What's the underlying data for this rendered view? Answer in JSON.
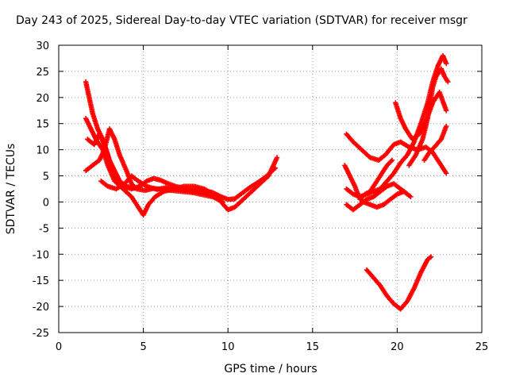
{
  "chart_data": {
    "type": "scatter",
    "title": "Day 243 of 2025, Sidereal Day-to-day VTEC variation (SDTVAR) for receiver msgr",
    "xlabel": "GPS time / hours",
    "ylabel": "SDTVAR / TECUs",
    "xlim": [
      0,
      25
    ],
    "ylim": [
      -25,
      30
    ],
    "xticks": [
      "0",
      "5",
      "10",
      "15",
      "20",
      "25"
    ],
    "yticks": [
      "-25",
      "-20",
      "-15",
      "-10",
      "-5",
      "0",
      "5",
      "10",
      "15",
      "20",
      "25",
      "30"
    ],
    "grid": true,
    "marker": "plus",
    "color": "#ff0000",
    "series": [
      {
        "points": [
          [
            1.6,
            23
          ],
          [
            1.8,
            20
          ],
          [
            2.0,
            17
          ],
          [
            2.3,
            14
          ],
          [
            2.6,
            12
          ],
          [
            2.9,
            9
          ],
          [
            3.1,
            6
          ],
          [
            3.4,
            4
          ],
          [
            3.8,
            3
          ],
          [
            4.3,
            2.5
          ],
          [
            4.8,
            3
          ],
          [
            5.2,
            4
          ],
          [
            5.6,
            4.5
          ],
          [
            6.0,
            4.2
          ],
          [
            6.4,
            3.6
          ],
          [
            6.9,
            3
          ],
          [
            7.4,
            2.6
          ],
          [
            8.0,
            2.5
          ],
          [
            8.6,
            2.2
          ],
          [
            9.1,
            1.8
          ],
          [
            9.6,
            1
          ],
          [
            10.0,
            0.5
          ],
          [
            10.4,
            0.6
          ],
          [
            10.8,
            1.6
          ],
          [
            11.3,
            2.8
          ],
          [
            11.8,
            3.8
          ],
          [
            12.3,
            5
          ],
          [
            12.8,
            6.5
          ]
        ]
      },
      {
        "points": [
          [
            1.6,
            16
          ],
          [
            1.9,
            14
          ],
          [
            2.2,
            12
          ],
          [
            2.6,
            10
          ],
          [
            2.9,
            7
          ],
          [
            3.3,
            4
          ],
          [
            3.8,
            2.5
          ],
          [
            4.3,
            1
          ],
          [
            4.7,
            -1
          ],
          [
            5.0,
            -2.5
          ],
          [
            5.3,
            -0.5
          ],
          [
            5.7,
            1
          ],
          [
            6.2,
            2
          ],
          [
            6.8,
            2.5
          ],
          [
            7.4,
            3
          ],
          [
            8.0,
            3
          ],
          [
            8.6,
            2.5
          ],
          [
            9.1,
            1.5
          ],
          [
            9.6,
            0
          ],
          [
            10.0,
            -1.5
          ],
          [
            10.4,
            -1
          ],
          [
            10.9,
            0.5
          ],
          [
            11.4,
            2
          ],
          [
            11.9,
            3.5
          ],
          [
            12.4,
            5
          ],
          [
            12.9,
            8.5
          ]
        ]
      },
      {
        "points": [
          [
            1.6,
            6
          ],
          [
            2.0,
            7
          ],
          [
            2.4,
            8
          ],
          [
            2.7,
            10
          ],
          [
            3.0,
            14
          ],
          [
            3.3,
            12
          ],
          [
            3.6,
            9
          ],
          [
            4.0,
            6
          ],
          [
            4.3,
            3.5
          ],
          [
            4.6,
            2.5
          ],
          [
            5.1,
            2.2
          ],
          [
            5.6,
            2.6
          ],
          [
            6.1,
            2.4
          ],
          [
            6.7,
            2.2
          ],
          [
            7.3,
            2
          ],
          [
            7.9,
            1.8
          ],
          [
            8.5,
            1.4
          ],
          [
            9.1,
            1
          ],
          [
            9.7,
            0
          ]
        ]
      },
      {
        "points": [
          [
            2.5,
            4
          ],
          [
            2.9,
            3
          ],
          [
            3.4,
            2.5
          ],
          [
            3.9,
            3.5
          ],
          [
            4.3,
            5
          ],
          [
            4.7,
            4
          ],
          [
            5.2,
            3
          ],
          [
            5.8,
            2.4
          ],
          [
            6.4,
            2.8
          ],
          [
            7.0,
            2.6
          ],
          [
            7.6,
            2.2
          ],
          [
            8.2,
            2
          ],
          [
            8.8,
            1.5
          ],
          [
            9.4,
            0.8
          ]
        ]
      },
      {
        "points": [
          [
            1.7,
            12
          ],
          [
            2.1,
            11
          ],
          [
            2.4,
            13
          ],
          [
            2.7,
            11
          ],
          [
            3.0,
            8
          ],
          [
            3.3,
            6
          ],
          [
            3.6,
            4
          ],
          [
            4.0,
            3
          ],
          [
            4.5,
            2.6
          ]
        ]
      },
      {
        "points": [
          [
            17.0,
            13
          ],
          [
            17.4,
            11.5
          ],
          [
            17.9,
            10
          ],
          [
            18.4,
            8.5
          ],
          [
            18.9,
            8
          ],
          [
            19.3,
            9
          ],
          [
            19.8,
            11
          ],
          [
            20.2,
            11.5
          ],
          [
            20.7,
            10.5
          ],
          [
            21.2,
            10
          ],
          [
            21.7,
            10.5
          ],
          [
            22.1,
            9.5
          ],
          [
            22.5,
            7.5
          ],
          [
            22.9,
            5.5
          ]
        ]
      },
      {
        "points": [
          [
            17.0,
            2.5
          ],
          [
            17.4,
            1.5
          ],
          [
            17.8,
            1
          ],
          [
            18.2,
            1.5
          ],
          [
            18.6,
            2
          ],
          [
            19.0,
            2.5
          ],
          [
            19.4,
            4
          ],
          [
            19.8,
            5.5
          ],
          [
            20.2,
            7.5
          ],
          [
            20.6,
            9
          ],
          [
            21.0,
            11.5
          ],
          [
            21.4,
            15
          ],
          [
            21.8,
            19
          ],
          [
            22.1,
            23
          ],
          [
            22.4,
            26
          ],
          [
            22.7,
            28
          ],
          [
            22.9,
            26.5
          ]
        ]
      },
      {
        "points": [
          [
            16.9,
            7
          ],
          [
            17.2,
            5
          ],
          [
            17.5,
            3
          ],
          [
            17.8,
            0.5
          ],
          [
            18.1,
            1.5
          ],
          [
            18.4,
            2
          ],
          [
            18.8,
            4
          ],
          [
            19.1,
            5.5
          ],
          [
            19.4,
            7
          ],
          [
            19.7,
            8
          ]
        ]
      },
      {
        "points": [
          [
            17.0,
            -0.5
          ],
          [
            17.4,
            -1.5
          ],
          [
            17.8,
            -0.5
          ],
          [
            18.2,
            0.5
          ],
          [
            18.6,
            1
          ],
          [
            19.0,
            2
          ],
          [
            19.4,
            3
          ],
          [
            19.8,
            3.5
          ],
          [
            20.2,
            2.5
          ],
          [
            20.6,
            1.5
          ]
        ]
      },
      {
        "points": [
          [
            17.6,
            1.5
          ],
          [
            18.0,
            0
          ],
          [
            18.4,
            -0.5
          ],
          [
            18.8,
            -1
          ],
          [
            19.2,
            -0.5
          ],
          [
            19.6,
            0.5
          ],
          [
            20.0,
            1.5
          ],
          [
            20.4,
            2
          ],
          [
            20.8,
            1
          ]
        ]
      },
      {
        "points": [
          [
            19.9,
            19
          ],
          [
            20.2,
            16
          ],
          [
            20.5,
            14
          ],
          [
            20.9,
            12
          ],
          [
            21.3,
            13
          ],
          [
            21.7,
            15.5
          ],
          [
            22.1,
            19
          ],
          [
            22.5,
            21
          ],
          [
            22.9,
            17.5
          ]
        ]
      },
      {
        "points": [
          [
            20.7,
            7
          ],
          [
            21.1,
            9
          ],
          [
            21.5,
            12
          ],
          [
            21.8,
            16
          ],
          [
            22.1,
            22
          ],
          [
            22.3,
            24
          ],
          [
            22.6,
            25.5
          ],
          [
            22.8,
            24
          ],
          [
            23.0,
            23
          ]
        ]
      },
      {
        "points": [
          [
            21.6,
            8
          ],
          [
            21.9,
            9.5
          ],
          [
            22.2,
            10.5
          ],
          [
            22.6,
            12
          ],
          [
            22.9,
            14.5
          ]
        ]
      },
      {
        "points": [
          [
            18.2,
            -13
          ],
          [
            18.6,
            -14.5
          ],
          [
            19.0,
            -16
          ],
          [
            19.4,
            -18
          ],
          [
            19.8,
            -19.5
          ],
          [
            20.2,
            -20.5
          ],
          [
            20.6,
            -19
          ],
          [
            21.0,
            -16.5
          ],
          [
            21.4,
            -13.5
          ],
          [
            21.8,
            -11
          ],
          [
            22.0,
            -10.5
          ]
        ]
      }
    ]
  }
}
